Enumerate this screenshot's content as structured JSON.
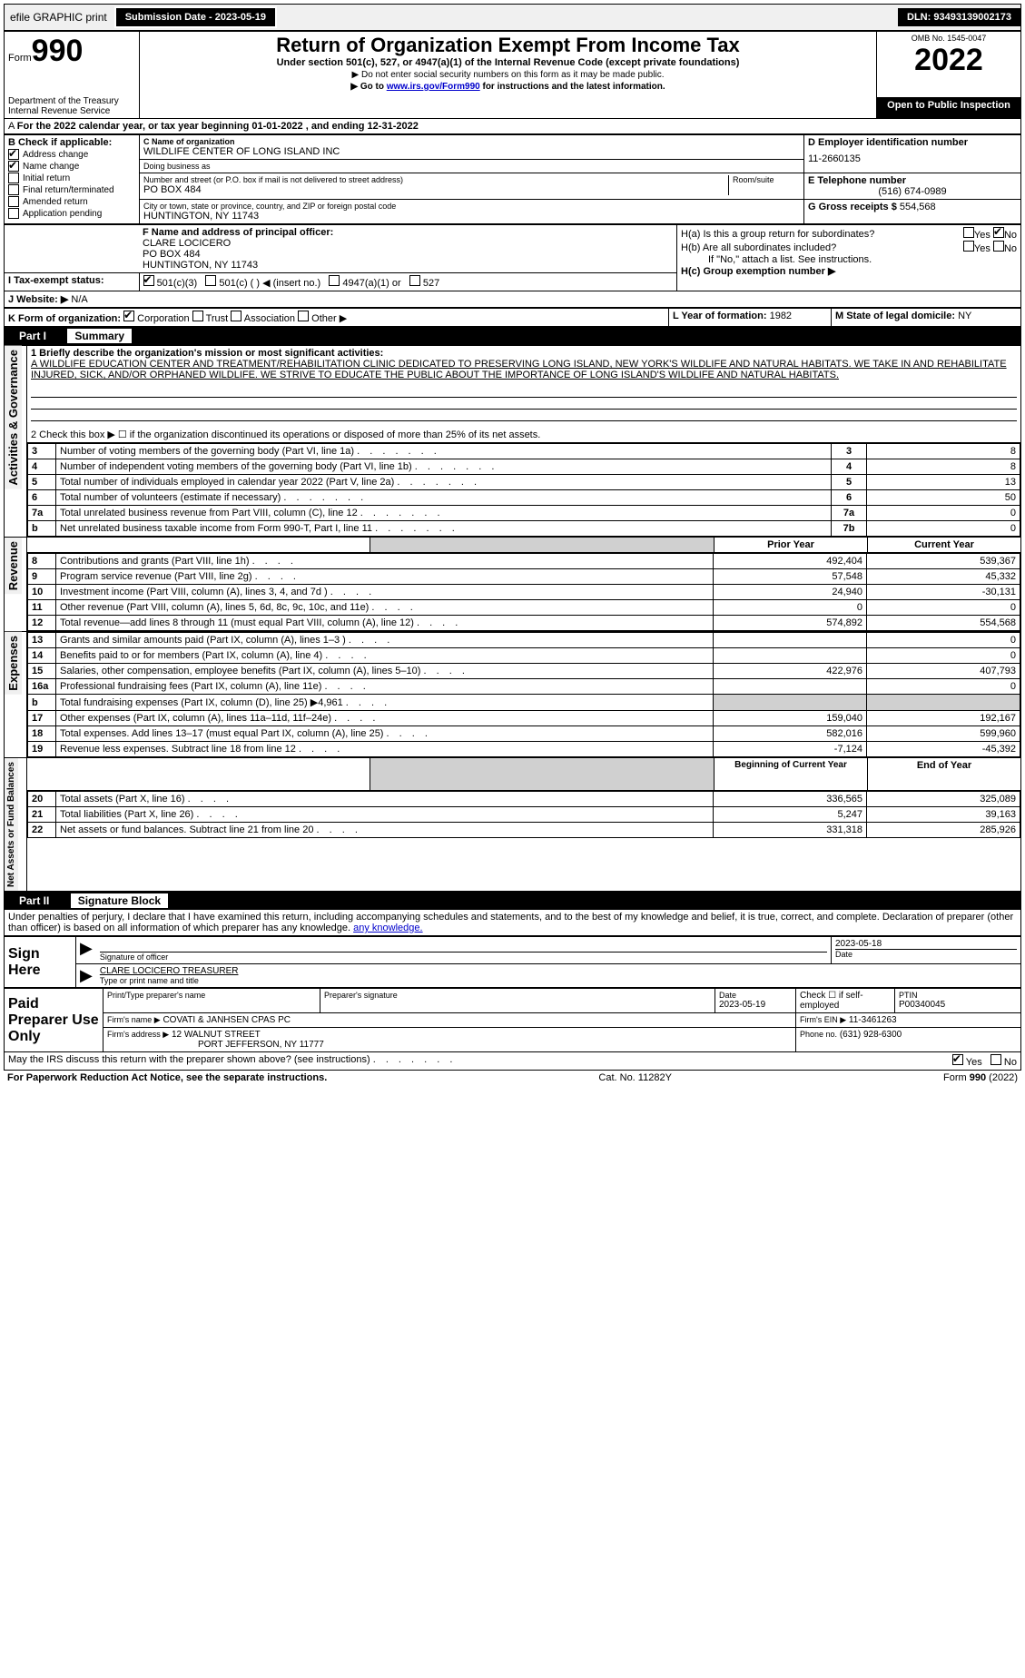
{
  "topbar": {
    "efile": "efile GRAPHIC print",
    "submission": "Submission Date - 2023-05-19",
    "dln": "DLN: 93493139002173"
  },
  "header": {
    "form": "Form",
    "form_num": "990",
    "title": "Return of Organization Exempt From Income Tax",
    "subtitle": "Under section 501(c), 527, or 4947(a)(1) of the Internal Revenue Code (except private foundations)",
    "no_ssn": "▶ Do not enter social security numbers on this form as it may be made public.",
    "goto": "▶ Go to www.irs.gov/Form990 for instructions and the latest information.",
    "goto_link": "www.irs.gov/Form990",
    "omb": "OMB No. 1545-0047",
    "year": "2022",
    "open": "Open to Public Inspection",
    "dept": "Department of the Treasury",
    "irs": "Internal Revenue Service"
  },
  "A": "For the 2022 calendar year, or tax year beginning 01-01-2022   , and ending 12-31-2022",
  "B": {
    "label": "B Check if applicable:",
    "addr": "Address change",
    "name": "Name change",
    "init": "Initial return",
    "final": "Final return/terminated",
    "amend": "Amended return",
    "app": "Application pending"
  },
  "C": {
    "label": "C Name of organization",
    "name": "WILDLIFE CENTER OF LONG ISLAND INC",
    "dba": "Doing business as",
    "street_label": "Number and street (or P.O. box if mail is not delivered to street address)",
    "room": "Room/suite",
    "street": "PO BOX 484",
    "city_label": "City or town, state or province, country, and ZIP or foreign postal code",
    "city": "HUNTINGTON, NY  11743"
  },
  "D": {
    "label": "D Employer identification number",
    "val": "11-2660135"
  },
  "E": {
    "label": "E Telephone number",
    "val": "(516) 674-0989"
  },
  "G": {
    "label": "G Gross receipts $",
    "val": "554,568"
  },
  "F": {
    "label": "F  Name and address of principal officer:",
    "name": "CLARE LOCICERO",
    "addr1": "PO BOX 484",
    "addr2": "HUNTINGTON, NY  11743"
  },
  "H": {
    "a": "H(a)  Is this a group return for subordinates?",
    "b": "H(b)  Are all subordinates included?",
    "b_note": "If \"No,\" attach a list. See instructions.",
    "c": "H(c)  Group exemption number ▶",
    "yes": "Yes",
    "no": "No"
  },
  "I": {
    "label": "I  Tax-exempt status:",
    "o1": "501(c)(3)",
    "o2": "501(c) (  ) ◀ (insert no.)",
    "o3": "4947(a)(1) or",
    "o4": "527"
  },
  "J": {
    "label": "J  Website: ▶",
    "val": "N/A"
  },
  "K": {
    "label": "K Form of organization:",
    "corp": "Corporation",
    "trust": "Trust",
    "assoc": "Association",
    "other": "Other ▶"
  },
  "L": {
    "label": "L Year of formation:",
    "val": "1982"
  },
  "M": {
    "label": "M State of legal domicile:",
    "val": "NY"
  },
  "part1": {
    "title": "Part I",
    "label": "Summary",
    "mission_label": "1  Briefly describe the organization's mission or most significant activities:",
    "mission": "A WILDLIFE EDUCATION CENTER AND TREATMENT/REHABILITATION CLINIC DEDICATED TO PRESERVING LONG ISLAND, NEW YORK'S WILDLIFE AND NATURAL HABITATS. WE TAKE IN AND REHABILITATE INJURED, SICK, AND/OR ORPHANED WILDLIFE. WE STRIVE TO EDUCATE THE PUBLIC ABOUT THE IMPORTANCE OF LONG ISLAND'S WILDLIFE AND NATURAL HABITATS.",
    "line2": "2  Check this box ▶ ☐  if the organization discontinued its operations or disposed of more than 25% of its net assets.",
    "rows_ag": [
      {
        "n": "3",
        "txt": "Number of voting members of the governing body (Part VI, line 1a)",
        "box": "3",
        "val": "8"
      },
      {
        "n": "4",
        "txt": "Number of independent voting members of the governing body (Part VI, line 1b)",
        "box": "4",
        "val": "8"
      },
      {
        "n": "5",
        "txt": "Total number of individuals employed in calendar year 2022 (Part V, line 2a)",
        "box": "5",
        "val": "13"
      },
      {
        "n": "6",
        "txt": "Total number of volunteers (estimate if necessary)",
        "box": "6",
        "val": "50"
      },
      {
        "n": "7a",
        "txt": "Total unrelated business revenue from Part VIII, column (C), line 12",
        "box": "7a",
        "val": "0"
      },
      {
        "n": "b",
        "txt": "Net unrelated business taxable income from Form 990-T, Part I, line 11",
        "box": "7b",
        "val": "0"
      }
    ],
    "prior": "Prior Year",
    "current": "Current Year",
    "rev_rows": [
      {
        "n": "8",
        "txt": "Contributions and grants (Part VIII, line 1h)",
        "p": "492,404",
        "c": "539,367"
      },
      {
        "n": "9",
        "txt": "Program service revenue (Part VIII, line 2g)",
        "p": "57,548",
        "c": "45,332"
      },
      {
        "n": "10",
        "txt": "Investment income (Part VIII, column (A), lines 3, 4, and 7d )",
        "p": "24,940",
        "c": "-30,131"
      },
      {
        "n": "11",
        "txt": "Other revenue (Part VIII, column (A), lines 5, 6d, 8c, 9c, 10c, and 11e)",
        "p": "0",
        "c": "0"
      },
      {
        "n": "12",
        "txt": "Total revenue—add lines 8 through 11 (must equal Part VIII, column (A), line 12)",
        "p": "574,892",
        "c": "554,568"
      }
    ],
    "exp_rows": [
      {
        "n": "13",
        "txt": "Grants and similar amounts paid (Part IX, column (A), lines 1–3 )",
        "p": "",
        "c": "0"
      },
      {
        "n": "14",
        "txt": "Benefits paid to or for members (Part IX, column (A), line 4)",
        "p": "",
        "c": "0"
      },
      {
        "n": "15",
        "txt": "Salaries, other compensation, employee benefits (Part IX, column (A), lines 5–10)",
        "p": "422,976",
        "c": "407,793"
      },
      {
        "n": "16a",
        "txt": "Professional fundraising fees (Part IX, column (A), line 11e)",
        "p": "",
        "c": "0"
      },
      {
        "n": "b",
        "txt": "Total fundraising expenses (Part IX, column (D), line 25) ▶4,961",
        "p": "GREY",
        "c": "GREY"
      },
      {
        "n": "17",
        "txt": "Other expenses (Part IX, column (A), lines 11a–11d, 11f–24e)",
        "p": "159,040",
        "c": "192,167"
      },
      {
        "n": "18",
        "txt": "Total expenses. Add lines 13–17 (must equal Part IX, column (A), line 25)",
        "p": "582,016",
        "c": "599,960"
      },
      {
        "n": "19",
        "txt": "Revenue less expenses. Subtract line 18 from line 12",
        "p": "-7,124",
        "c": "-45,392"
      }
    ],
    "boy": "Beginning of Current Year",
    "eoy": "End of Year",
    "net_rows": [
      {
        "n": "20",
        "txt": "Total assets (Part X, line 16)",
        "p": "336,565",
        "c": "325,089"
      },
      {
        "n": "21",
        "txt": "Total liabilities (Part X, line 26)",
        "p": "5,247",
        "c": "39,163"
      },
      {
        "n": "22",
        "txt": "Net assets or fund balances. Subtract line 21 from line 20",
        "p": "331,318",
        "c": "285,926"
      }
    ]
  },
  "part2": {
    "title": "Part II",
    "label": "Signature Block",
    "decl": "Under penalties of perjury, I declare that I have examined this return, including accompanying schedules and statements, and to the best of my knowledge and belief, it is true, correct, and complete. Declaration of preparer (other than officer) is based on all information of which preparer has any knowledge."
  },
  "sign": {
    "here": "Sign Here",
    "sig_officer": "Signature of officer",
    "date": "Date",
    "date_val": "2023-05-18",
    "name": "CLARE LOCICERO  TREASURER",
    "name_label": "Type or print name and title"
  },
  "paid": {
    "label": "Paid Preparer Use Only",
    "print_name": "Print/Type preparer's name",
    "sig": "Preparer's signature",
    "date": "Date",
    "date_val": "2023-05-19",
    "check": "Check ☐ if self-employed",
    "ptin": "PTIN",
    "ptin_val": "P00340045",
    "firm_name_l": "Firm's name   ▶",
    "firm_name": "COVATI & JANHSEN CPAS PC",
    "firm_ein_l": "Firm's EIN ▶",
    "firm_ein": "11-3461263",
    "firm_addr_l": "Firm's address ▶",
    "firm_addr": "12 WALNUT STREET",
    "firm_city": "PORT JEFFERSON, NY  11777",
    "phone_l": "Phone no.",
    "phone": "(631) 928-6300"
  },
  "discuss": "May the IRS discuss this return with the preparer shown above? (see instructions)",
  "footer": {
    "pra": "For Paperwork Reduction Act Notice, see the separate instructions.",
    "cat": "Cat. No. 11282Y",
    "form": "Form 990 (2022)"
  },
  "side_labels": {
    "ag": "Activities & Governance",
    "rev": "Revenue",
    "exp": "Expenses",
    "net": "Net Assets or Fund Balances"
  }
}
